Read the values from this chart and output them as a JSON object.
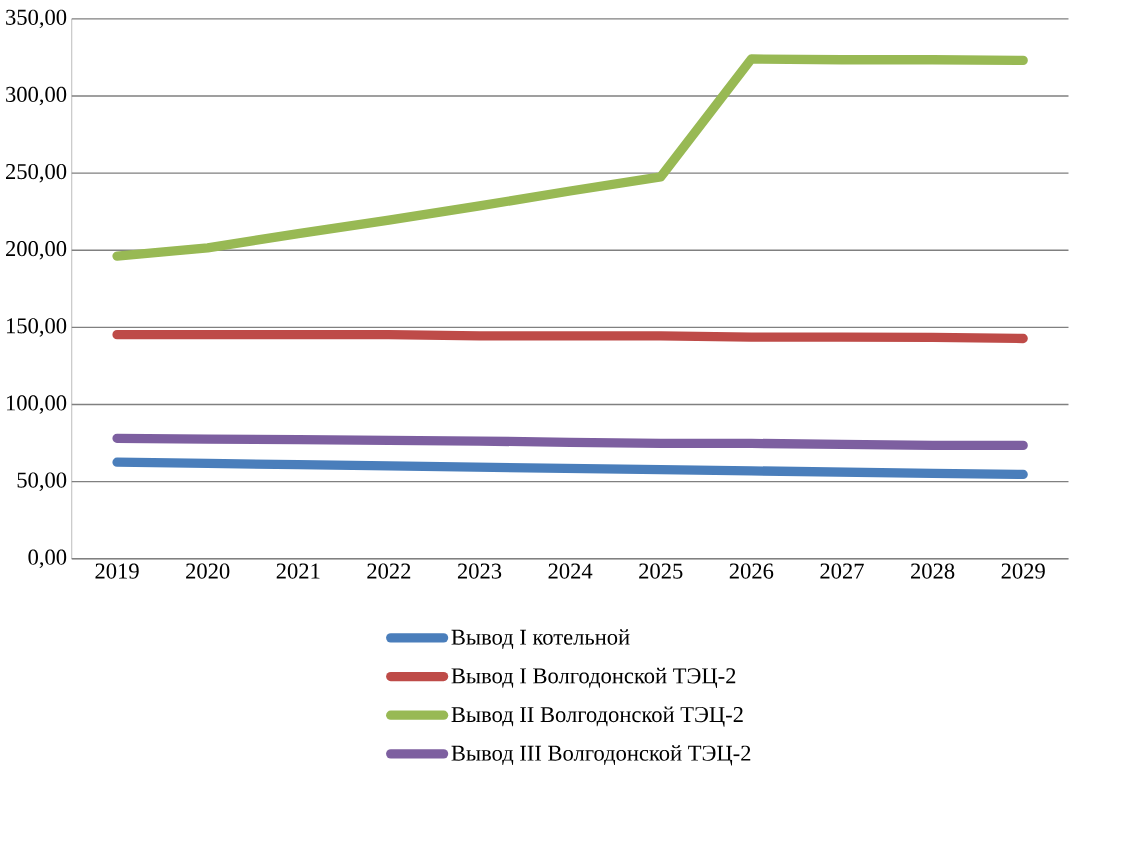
{
  "chart_data": {
    "type": "line",
    "categories": [
      "2019",
      "2020",
      "2021",
      "2022",
      "2023",
      "2024",
      "2025",
      "2026",
      "2027",
      "2028",
      "2029"
    ],
    "series": [
      {
        "name": "Вывод I котельной",
        "color": "#4a7ebb",
        "values": [
          62.6,
          61.8,
          61,
          60.2,
          59.4,
          58.6,
          57.8,
          57,
          56.2,
          55.4,
          54.7
        ]
      },
      {
        "name": "Вывод I Волгодонской ТЭЦ-2",
        "color": "#be4b48",
        "values": [
          145.3,
          145.3,
          145.3,
          145.3,
          144.5,
          144.5,
          144.5,
          143.7,
          143.7,
          143.5,
          142.8
        ]
      },
      {
        "name": "Вывод II Волгодонской ТЭЦ-2",
        "color": "#98b954",
        "values": [
          196.2,
          201.6,
          210.8,
          219.6,
          228.8,
          238.4,
          247.6,
          324,
          323.5,
          323.5,
          323.1
        ]
      },
      {
        "name": "Вывод III Волгодонской ТЭЦ-2",
        "color": "#7d5fa0",
        "values": [
          78.1,
          77.6,
          77.3,
          76.8,
          76.3,
          75.5,
          74.8,
          74.8,
          74.2,
          73.5,
          73.5
        ]
      }
    ],
    "ylim": [
      0,
      350
    ],
    "yticks": [
      {
        "value": 0,
        "label": "0,00"
      },
      {
        "value": 50,
        "label": "50,00"
      },
      {
        "value": 100,
        "label": "100,00"
      },
      {
        "value": 150,
        "label": "150,00"
      },
      {
        "value": 200,
        "label": "200,00"
      },
      {
        "value": 250,
        "label": "250,00"
      },
      {
        "value": 300,
        "label": "300,00"
      },
      {
        "value": 350,
        "label": "350,00"
      }
    ],
    "grid": "y",
    "legend": "bottom",
    "marker": "none",
    "line_style": "solid"
  }
}
